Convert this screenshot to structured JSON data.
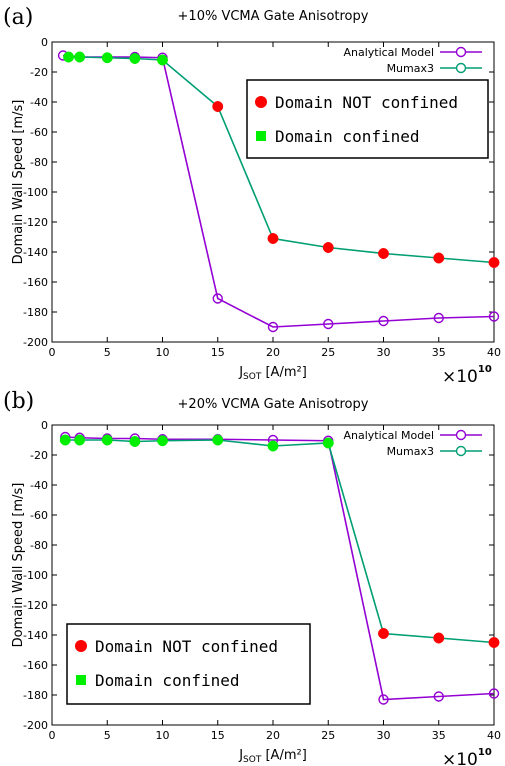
{
  "panels": [
    {
      "panel_label": "(a)",
      "xlabel_sub": "SOT",
      "xlabel_rest": " [A/m²]",
      "exponent_base": "×10",
      "exponent_power": "10",
      "legend_box_lines": [
        "Domain NOT confined",
        "Domain confined"
      ],
      "legend_box_colors": [
        "#ff0000",
        "#00ee00"
      ]
    },
    {
      "panel_label": "(b)",
      "xlabel_sub": "SOT",
      "xlabel_rest": " [A/m²]",
      "exponent_base": "×10",
      "exponent_power": "10",
      "legend_box_lines": [
        "Domain NOT confined",
        "Domain confined"
      ],
      "legend_box_colors": [
        "#ff0000",
        "#00ee00"
      ]
    }
  ],
  "chart_data": [
    {
      "type": "line",
      "title": "+10% VCMA Gate Anisotropy",
      "xlabel": "J_SOT [A/m²]",
      "ylabel": "Domain Wall Speed [m/s]",
      "xlim": [
        0,
        40
      ],
      "ylim": [
        -200,
        0
      ],
      "x_scale_note": "×10^10",
      "x_ticks": [
        0,
        5,
        10,
        15,
        20,
        25,
        30,
        35,
        40
      ],
      "y_ticks": [
        0,
        -20,
        -40,
        -60,
        -80,
        -100,
        -120,
        -140,
        -160,
        -180,
        -200
      ],
      "grid": false,
      "legend_position": "top-right",
      "series": [
        {
          "name": "Analytical Model",
          "color": "#9400d3",
          "marker": "open-circle",
          "x": [
            1,
            2.5,
            7.5,
            10,
            15,
            20,
            25,
            30,
            35,
            40
          ],
          "y": [
            -9,
            -10,
            -10,
            -10.5,
            -171,
            -190,
            -188,
            -186,
            -184,
            -183
          ]
        },
        {
          "name": "Mumax3",
          "color": "#009e73",
          "marker": "open-circle",
          "x": [
            1.5,
            2.5,
            5,
            7.5,
            10,
            15,
            20,
            25,
            30,
            35,
            40
          ],
          "y": [
            -10,
            -10,
            -10.5,
            -11,
            -12,
            -43,
            -131,
            -137,
            -141,
            -144,
            -147
          ]
        }
      ],
      "state_markers": [
        {
          "state": "not_confined",
          "color": "#ff0000",
          "x": [
            15,
            20,
            25,
            30,
            35,
            40
          ],
          "y": [
            -43,
            -131,
            -137,
            -141,
            -144,
            -147
          ]
        },
        {
          "state": "confined",
          "color": "#00ee00",
          "x": [
            1.5,
            2.5,
            5,
            7.5,
            10
          ],
          "y": [
            -10,
            -10,
            -10.5,
            -11,
            -12
          ]
        }
      ]
    },
    {
      "type": "line",
      "title": "+20% VCMA Gate Anisotropy",
      "xlabel": "J_SOT [A/m²]",
      "ylabel": "Domain Wall Speed [m/s]",
      "xlim": [
        0,
        40
      ],
      "ylim": [
        -200,
        0
      ],
      "x_scale_note": "×10^10",
      "x_ticks": [
        0,
        5,
        10,
        15,
        20,
        25,
        30,
        35,
        40
      ],
      "y_ticks": [
        0,
        -20,
        -40,
        -60,
        -80,
        -100,
        -120,
        -140,
        -160,
        -180,
        -200
      ],
      "grid": false,
      "legend_position": "top-right",
      "series": [
        {
          "name": "Analytical Model",
          "color": "#9400d3",
          "marker": "open-circle",
          "x": [
            1.2,
            2.5,
            5,
            7.5,
            10,
            15,
            20,
            25,
            30,
            35,
            40
          ],
          "y": [
            -8,
            -8.5,
            -9,
            -9,
            -9.5,
            -9.5,
            -10,
            -10.5,
            -183,
            -181,
            -179
          ]
        },
        {
          "name": "Mumax3",
          "color": "#009e73",
          "marker": "open-circle",
          "x": [
            1.2,
            2.5,
            5,
            7.5,
            10,
            15,
            20,
            25,
            30,
            35,
            40
          ],
          "y": [
            -10,
            -10,
            -10,
            -11,
            -10.5,
            -10,
            -14,
            -12,
            -139,
            -142,
            -145
          ]
        }
      ],
      "state_markers": [
        {
          "state": "not_confined",
          "color": "#ff0000",
          "x": [
            30,
            35,
            40
          ],
          "y": [
            -139,
            -142,
            -145
          ]
        },
        {
          "state": "confined",
          "color": "#00ee00",
          "x": [
            1.2,
            2.5,
            5,
            7.5,
            10,
            15,
            20,
            25
          ],
          "y": [
            -10,
            -10,
            -10,
            -11,
            -10.5,
            -10,
            -14,
            -12
          ]
        }
      ]
    }
  ]
}
